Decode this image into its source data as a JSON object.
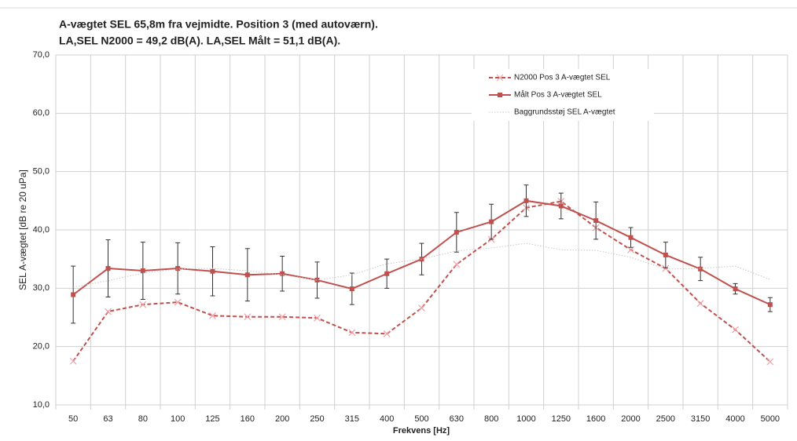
{
  "chart_data": {
    "type": "line",
    "title": "A-vægtet SEL 65,8m fra vejmidte. Position 3 (med autoværn).",
    "subtitle": "LA,SEL N2000 = 49,2 dB(A). LA,SEL Målt = 51,1 dB(A).",
    "y_label": "SEL A-vægtet [dB re  20 uPa]",
    "x_label": "Frekvens [Hz]",
    "categories": [
      "50",
      "63",
      "80",
      "100",
      "125",
      "160",
      "200",
      "250",
      "315",
      "400",
      "500",
      "630",
      "800",
      "1000",
      "1250",
      "1600",
      "2000",
      "2500",
      "3150",
      "4000",
      "5000"
    ],
    "series": [
      {
        "name": "N2000 Pos 3 A-vægtet SEL",
        "color": "#c0504d",
        "dash": "dashed",
        "marker": "x",
        "values": [
          17.5,
          26,
          27.2,
          27.6,
          25.3,
          25.1,
          25.1,
          24.9,
          22.4,
          22.2,
          26.6,
          34.1,
          38.4,
          43.8,
          44.9,
          40.4,
          36.6,
          33.4,
          27.4,
          22.9,
          17.4
        ]
      },
      {
        "name": "Målt Pos 3 A-vægtet SEL",
        "color": "#c0504d",
        "dash": "solid",
        "marker": "square",
        "values": [
          28.9,
          33.4,
          33,
          33.4,
          32.9,
          32.3,
          32.5,
          31.4,
          29.9,
          32.5,
          35,
          39.6,
          41.4,
          45,
          44.1,
          41.6,
          38.7,
          35.7,
          33.3,
          29.9,
          27.2
        ],
        "errors": [
          4.9,
          4.9,
          4.9,
          4.4,
          4.2,
          4.5,
          3,
          3.1,
          2.7,
          2.5,
          2.7,
          3.4,
          3,
          2.7,
          2.2,
          3.2,
          1.7,
          2.2,
          2,
          0.9,
          1.2
        ]
      },
      {
        "name": "Baggrundsstøj SEL A-vægtet",
        "color": "#c8c8c8",
        "dash": "dotted",
        "marker": "none",
        "values": [
          30.2,
          31.3,
          32.6,
          33.3,
          33.4,
          33,
          32.3,
          31.4,
          32.3,
          34.2,
          35,
          36.4,
          36.9,
          37.7,
          36.6,
          36.5,
          35.3,
          33.3,
          33.4,
          33.8,
          31.5
        ]
      }
    ],
    "ylim": [
      10,
      70
    ],
    "yticks": [
      {
        "value": 10,
        "label": "10,0"
      },
      {
        "value": 20,
        "label": "20,0"
      },
      {
        "value": 30,
        "label": "30,0"
      },
      {
        "value": 40,
        "label": "40,0"
      },
      {
        "value": 50,
        "label": "50,0"
      },
      {
        "value": 60,
        "label": "60,0"
      },
      {
        "value": 70,
        "label": "70,0"
      }
    ],
    "grid": true,
    "legend": "upper right"
  }
}
